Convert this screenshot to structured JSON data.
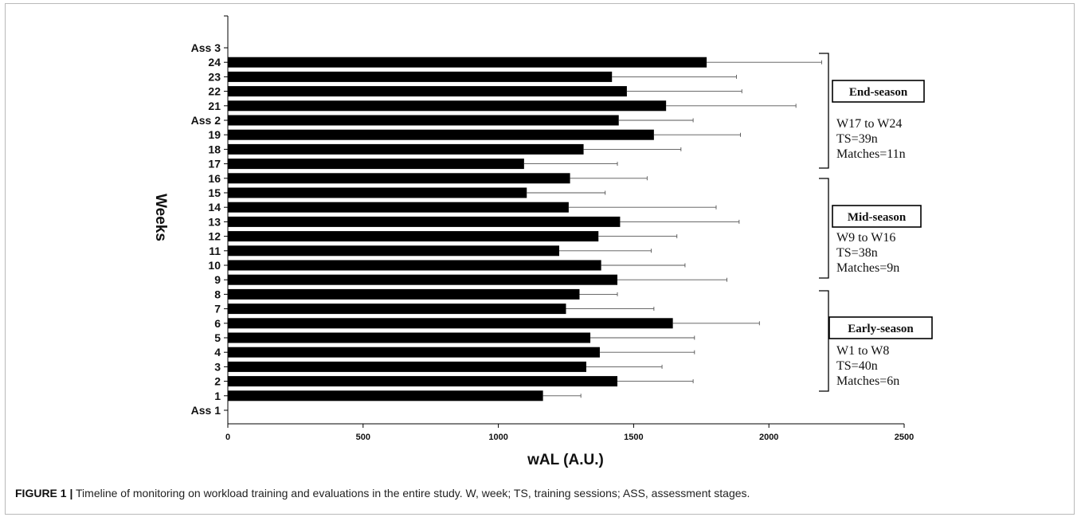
{
  "chart_data": {
    "type": "bar",
    "orientation": "horizontal",
    "categories": [
      "Ass 1",
      "1",
      "2",
      "3",
      "4",
      "5",
      "6",
      "7",
      "8",
      "9",
      "10",
      "11",
      "12",
      "13",
      "14",
      "15",
      "16",
      "17",
      "18",
      "19",
      "Ass 2",
      "21",
      "22",
      "23",
      "24",
      "Ass 3"
    ],
    "values": [
      null,
      1165,
      1440,
      1325,
      1375,
      1340,
      1645,
      1250,
      1300,
      1440,
      1380,
      1225,
      1370,
      1450,
      1260,
      1105,
      1265,
      1095,
      1315,
      1575,
      1445,
      1620,
      1475,
      1420,
      1770,
      null
    ],
    "error": [
      null,
      140,
      280,
      280,
      350,
      385,
      320,
      325,
      140,
      405,
      310,
      340,
      290,
      440,
      545,
      290,
      285,
      345,
      360,
      320,
      275,
      480,
      425,
      460,
      425,
      null
    ],
    "xlabel": "wAL (A.U.)",
    "ylabel": "Weeks",
    "xlim": [
      0,
      2500
    ],
    "xticks": [
      "0",
      "500",
      "1000",
      "1500",
      "2000",
      "2500"
    ],
    "grid": false,
    "legend": "none",
    "bar_color": "#000000"
  },
  "phases": [
    {
      "title": "End-season",
      "lines": [
        "W17 to W24",
        "TS=39n",
        "Matches=11n"
      ]
    },
    {
      "title": "Mid-season",
      "lines": [
        "W9 to W16",
        "TS=38n",
        "Matches=9n"
      ]
    },
    {
      "title": "Early-season",
      "lines": [
        "W1 to W8",
        "TS=40n",
        "Matches=6n"
      ]
    }
  ],
  "caption": {
    "label": "FIGURE 1 |",
    "text": " Timeline of monitoring on workload training and evaluations in the entire study. W, week; TS, training sessions; ASS, assessment stages."
  }
}
